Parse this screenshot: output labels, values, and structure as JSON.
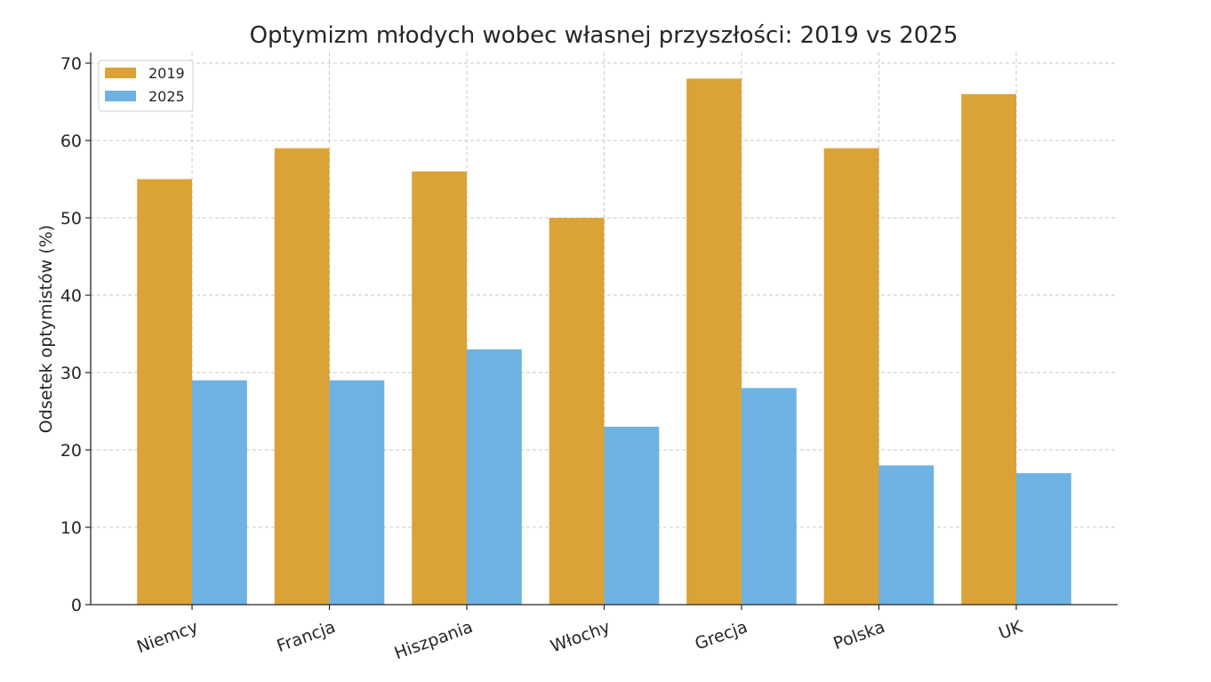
{
  "chart_data": {
    "type": "bar",
    "title": "Optymizm młodych wobec własnej przyszłości: 2019 vs 2025",
    "xlabel": "",
    "ylabel": "Odsetek optymistów (%)",
    "categories": [
      "Niemcy",
      "Francja",
      "Hiszpania",
      "Włochy",
      "Grecja",
      "Polska",
      "UK"
    ],
    "series": [
      {
        "name": "2019",
        "color": "#DBA237",
        "values": [
          55,
          59,
          56,
          50,
          68,
          59,
          66
        ]
      },
      {
        "name": "2025",
        "color": "#6DB2E3",
        "values": [
          29,
          29,
          33,
          23,
          28,
          18,
          17
        ]
      }
    ],
    "ylim": [
      0,
      70
    ],
    "yticks": [
      0,
      10,
      20,
      30,
      40,
      50,
      60,
      70
    ],
    "grid": true,
    "legend": "top-left"
  }
}
